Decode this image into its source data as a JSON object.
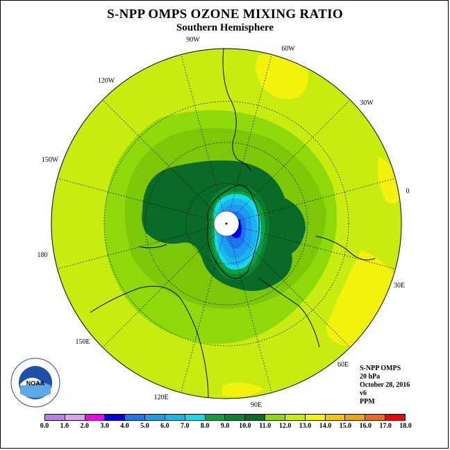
{
  "title": "S-NPP OMPS OZONE MIXING RATIO",
  "subtitle": "Southern Hemisphere",
  "longitude_labels": {
    "lon_90w": "90W",
    "lon_60w": "60W",
    "lon_120w": "120W",
    "lon_30w": "30W",
    "lon_150w": "150W",
    "lon_0": "0",
    "lon_180": "180",
    "lon_30e": "30E",
    "lon_150e": "150E",
    "lon_60e": "60E",
    "lon_120e": "120E",
    "lon_90e": "90E"
  },
  "info": {
    "instrument": "S-NPP OMPS",
    "level": "20 hPa",
    "date": "October 28, 2016",
    "version": "v6",
    "units": "PPM"
  },
  "logo_text": "NOAA",
  "colors": {
    "c0": "#b880f0",
    "c1": "#dca0ee",
    "c2": "#f000f0",
    "c3": "#0000f0",
    "c4": "#1a78ee",
    "c5": "#1e9af0",
    "c6": "#18b4f0",
    "c7": "#18d8f0",
    "c8": "#10a040",
    "c9": "#0a8430",
    "c10": "#0a6a2a",
    "c11": "#8fd80a",
    "c12": "#c8ec10",
    "c13": "#f2f20c",
    "c14": "#f2c808",
    "c15": "#f0a010",
    "c16": "#f06818",
    "c17": "#f00010",
    "c18": "#7a5030"
  },
  "colorbar": {
    "tick_labels": [
      "0.0",
      "1.0",
      "2.0",
      "3.0",
      "4.0",
      "5.0",
      "6.0",
      "7.0",
      "8.0",
      "9.0",
      "10.0",
      "11.0",
      "12.0",
      "13.0",
      "14.0",
      "15.0",
      "16.0",
      "17.0",
      "18.0"
    ]
  }
}
